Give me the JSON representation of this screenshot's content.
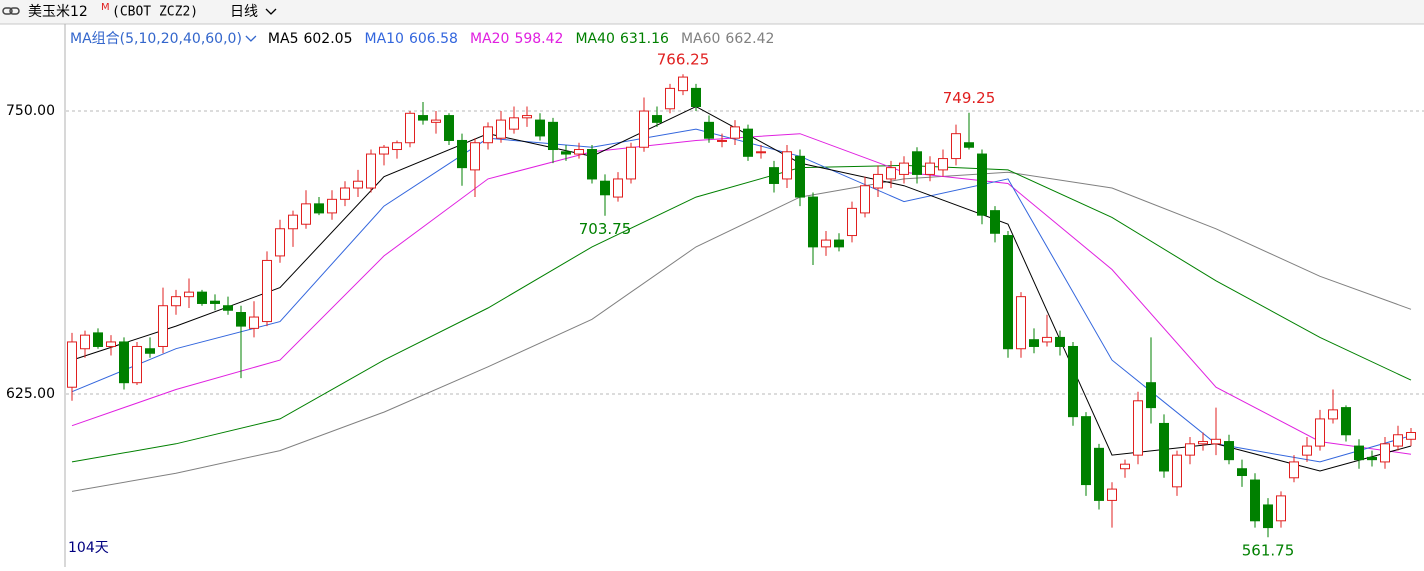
{
  "header": {
    "title": "美玉米12",
    "title_sup": "M",
    "symbol": "(CBOT ZCZ2)",
    "period": "日线"
  },
  "chart_data": {
    "type": "candlestick",
    "ma_group": "MA组合(5,10,20,40,60,0)",
    "day_count": "104天",
    "ylim": [
      550,
      785
    ],
    "yticks": [
      {
        "value": 625,
        "label": "625.00"
      },
      {
        "value": 750,
        "label": "750.00"
      }
    ],
    "grid": true,
    "up_color": "#e02020",
    "down_color": "#008000",
    "open": [
      628,
      645,
      652,
      646,
      648,
      630,
      645,
      646,
      664,
      668,
      670,
      666,
      664,
      661,
      654,
      657,
      686,
      698,
      700,
      709,
      705,
      711,
      716,
      716,
      731,
      733,
      736,
      748,
      745,
      748,
      737,
      724,
      736,
      738,
      742,
      747,
      746,
      745,
      732,
      731,
      733,
      719,
      712,
      720,
      734,
      748,
      751,
      759,
      760,
      745,
      737,
      738,
      742,
      732,
      725,
      720,
      730,
      712,
      690,
      693,
      695,
      705,
      716,
      720,
      722,
      732,
      722,
      724,
      729,
      736,
      731,
      706,
      695,
      645,
      649,
      648,
      650,
      646,
      615,
      601,
      578,
      592,
      598,
      630,
      612,
      584,
      598,
      603,
      603,
      604,
      592,
      587,
      576,
      569,
      588,
      598,
      602,
      614,
      619,
      602,
      597,
      595,
      602,
      605
    ],
    "high": [
      652,
      653,
      654,
      651,
      650,
      648,
      650,
      672,
      671,
      676,
      671,
      669,
      668,
      664,
      666,
      688,
      702,
      706,
      715,
      712,
      715,
      719,
      724,
      733,
      735,
      737,
      750,
      754,
      750,
      749,
      740,
      738,
      745,
      750,
      752,
      752,
      749,
      747,
      735,
      736,
      735,
      722,
      723,
      736,
      756,
      752,
      762,
      766.25,
      762,
      748,
      740,
      746,
      744,
      735,
      728,
      735,
      733,
      714,
      697,
      696,
      710,
      721,
      726,
      728,
      730,
      734,
      730,
      733,
      744,
      749.25,
      733,
      708,
      697,
      670,
      654,
      660,
      653,
      648,
      617,
      603,
      586,
      596,
      626,
      650,
      616,
      600,
      606,
      608,
      619,
      607,
      596,
      590,
      579,
      582,
      598,
      606,
      618,
      627,
      620,
      605,
      600,
      606,
      611,
      610
    ],
    "low": [
      622,
      641,
      645,
      642,
      627,
      629,
      641,
      643,
      660,
      663,
      664,
      662,
      660,
      632,
      650,
      655,
      683,
      690,
      698,
      704,
      702,
      708,
      712,
      714,
      726,
      729,
      734,
      744,
      740,
      735,
      717,
      712,
      733,
      736,
      740,
      743,
      737,
      727,
      728,
      729,
      718,
      703.75,
      710,
      718,
      732,
      743,
      749,
      757,
      750,
      736,
      734,
      735,
      728,
      729,
      714,
      716,
      708,
      682,
      686,
      688,
      692,
      703,
      712,
      716,
      718,
      718,
      719,
      721,
      726,
      733,
      700,
      692,
      641,
      641,
      643,
      646,
      642,
      611,
      580,
      574,
      566,
      588,
      594,
      612,
      588,
      580,
      594,
      600,
      598,
      594,
      584,
      566,
      561.75,
      566,
      586,
      595,
      600,
      612,
      604,
      592,
      593,
      592,
      600,
      602
    ],
    "close": [
      648,
      651,
      646,
      648,
      630,
      646,
      643,
      664,
      668,
      670,
      665,
      665,
      662,
      655,
      659,
      684,
      698,
      704,
      709,
      705,
      711,
      716,
      719,
      731,
      734,
      736,
      749,
      746,
      746,
      737,
      725,
      736,
      743,
      746,
      747,
      748,
      739,
      733,
      731,
      733,
      720,
      713,
      720,
      734,
      750,
      745,
      760,
      765,
      752,
      738,
      737,
      743,
      730,
      732,
      718,
      732,
      712,
      690,
      693,
      690,
      707,
      717,
      722,
      725,
      727,
      722,
      727,
      729,
      740,
      734,
      704,
      696,
      645,
      668,
      646,
      650,
      646,
      615,
      585,
      578,
      583,
      594,
      622,
      619,
      591,
      598,
      603,
      604,
      605,
      596,
      589,
      569,
      566,
      580,
      595,
      602,
      614,
      618,
      607,
      596,
      596,
      603,
      607,
      608
    ],
    "ma_x": [
      0,
      8,
      16,
      24,
      32,
      40,
      48,
      56,
      64,
      72,
      80,
      88,
      96,
      103
    ],
    "series": [
      {
        "name": "MA5",
        "color": "#000000",
        "values": [
          640,
          655,
          672,
          721,
          740,
          730,
          752,
          727,
          717,
          700,
          598,
          603,
          591,
          602.05
        ]
      },
      {
        "name": "MA10",
        "color": "#3366dd",
        "values": [
          626,
          645,
          657,
          708,
          738,
          734,
          742,
          730,
          710,
          720,
          640,
          603,
          595,
          606.58
        ]
      },
      {
        "name": "MA20",
        "color": "#e020e0",
        "values": [
          611,
          627,
          640,
          686,
          720,
          732,
          737,
          740,
          723,
          718,
          680,
          628,
          604,
          598.42
        ]
      },
      {
        "name": "MA40",
        "color": "#008000",
        "values": [
          595,
          603,
          614,
          640,
          663,
          690,
          712,
          725,
          726,
          724,
          703,
          675,
          650,
          631.16
        ]
      },
      {
        "name": "MA60",
        "color": "#808080",
        "values": [
          582,
          590,
          600,
          617,
          637,
          658,
          690,
          712,
          720,
          723,
          716,
          698,
          677,
          662.42
        ]
      }
    ],
    "annotations": [
      {
        "index": 47,
        "value": 766.25,
        "position": "high",
        "color": "#e02020"
      },
      {
        "index": 69,
        "value": 749.25,
        "position": "high",
        "color": "#e02020"
      },
      {
        "index": 41,
        "value": 703.75,
        "position": "low",
        "color": "#008000"
      },
      {
        "index": 92,
        "value": 561.75,
        "position": "low",
        "color": "#008000"
      }
    ]
  }
}
